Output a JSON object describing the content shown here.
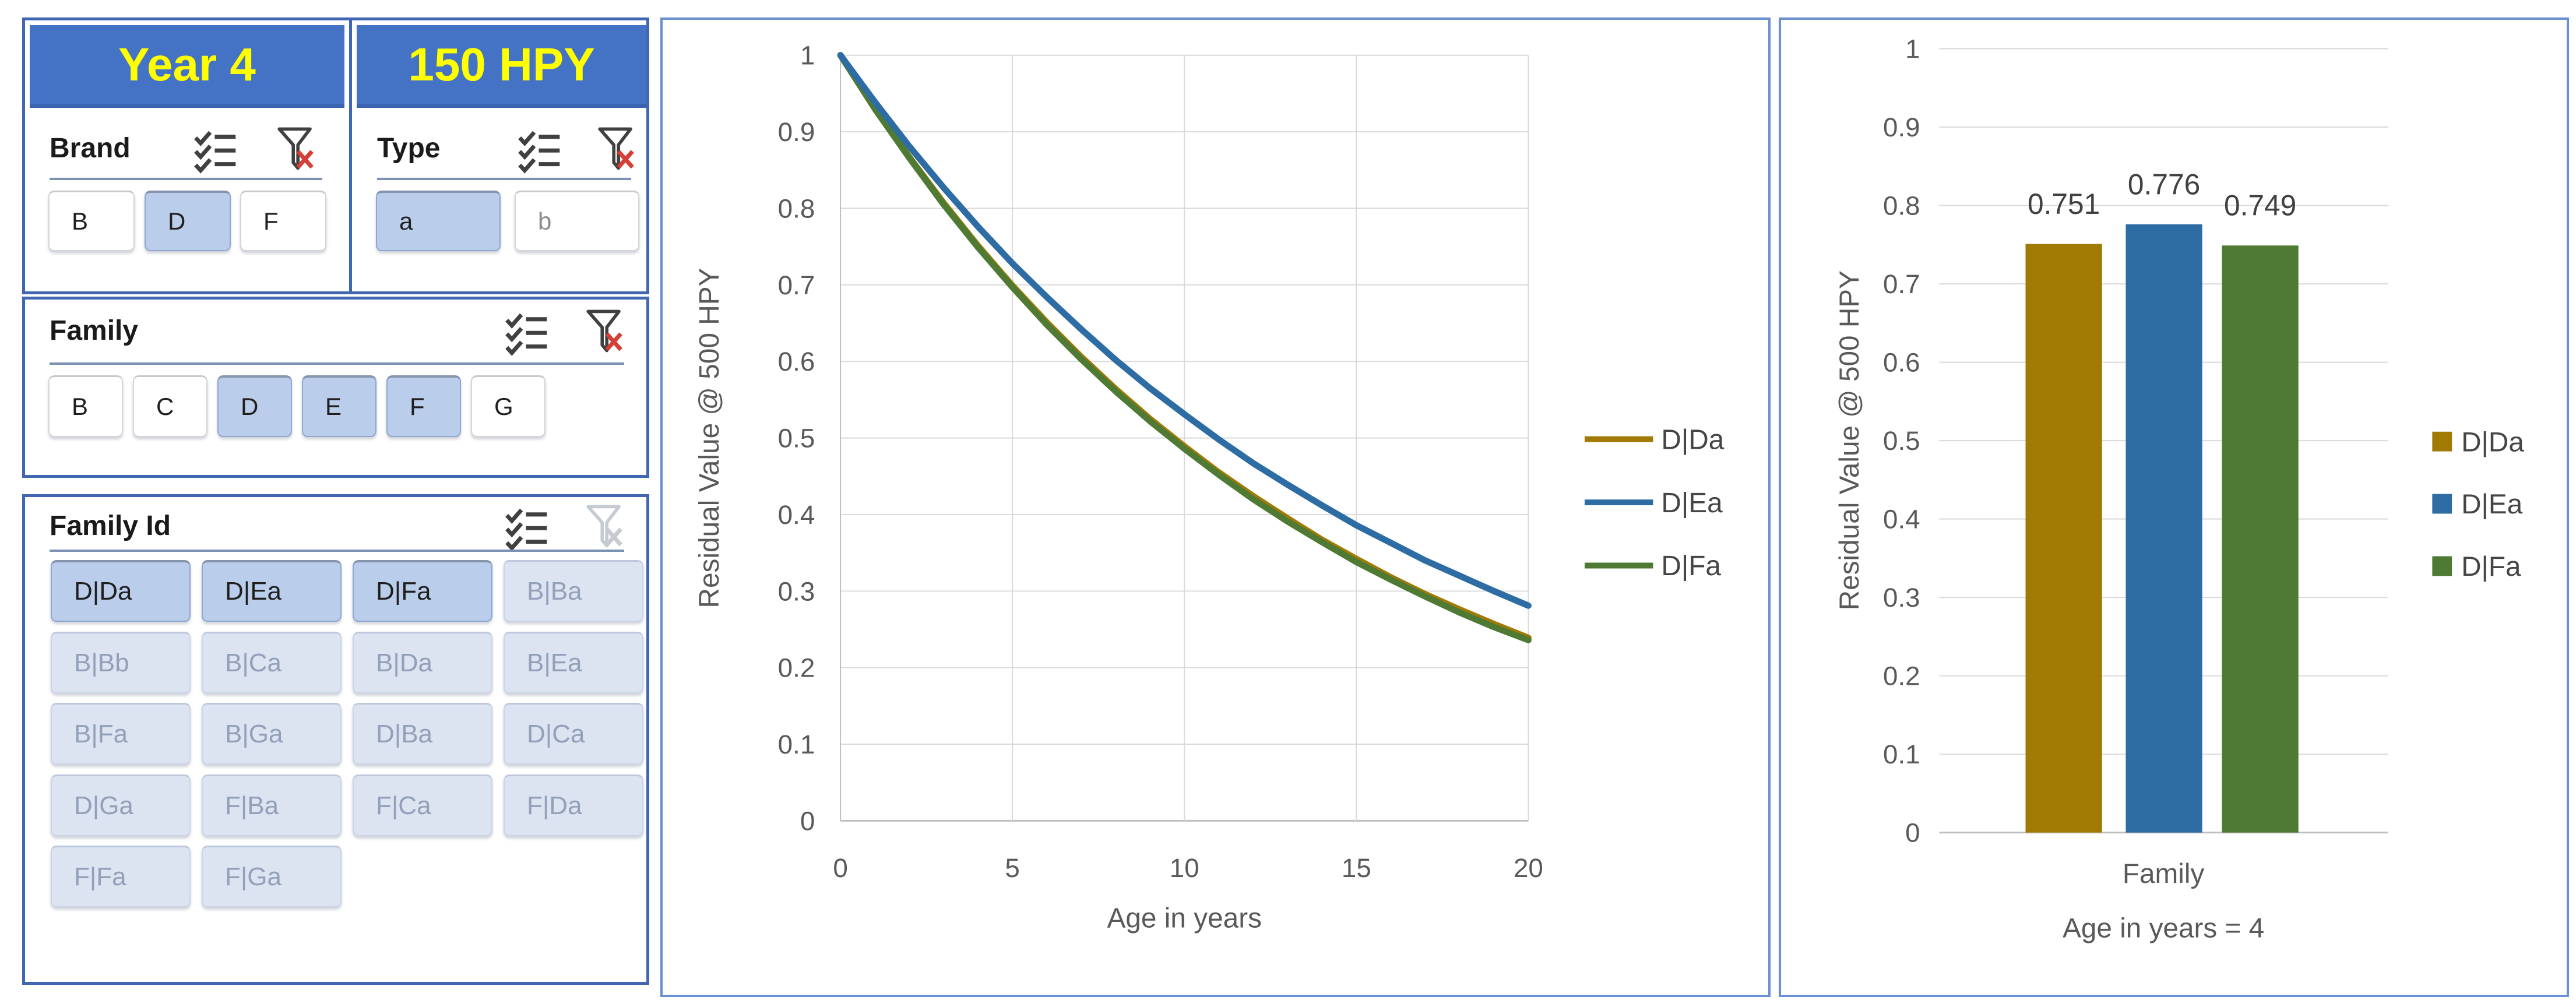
{
  "theme": {
    "accent_blue": "#4472C4",
    "tile_text_yellow": "#FFFF00",
    "box_border_blue": "#4167B2",
    "panel_border_blue": "#6B8FD3",
    "separator_blue": "#7C92B4",
    "selected_fill": "#BACDEA",
    "nodata_fill": "#DCE3F1",
    "grid_color": "#D9D9D9",
    "axis_color": "#BFBFBF",
    "tick_text": "#595959",
    "data_label_text": "#404040",
    "clear_filter_x_red": "#D43F38",
    "series_gold": "#A17A04",
    "series_blue": "#2E6DA4",
    "series_green": "#4E7A34"
  },
  "header_tiles": [
    {
      "label": "Year 4"
    },
    {
      "label": "150 HPY"
    }
  ],
  "slicers": {
    "brand": {
      "title": "Brand",
      "filter_clear_enabled": true,
      "items": [
        {
          "label": "B",
          "state": "normal"
        },
        {
          "label": "D",
          "state": "selected"
        },
        {
          "label": "F",
          "state": "normal"
        }
      ]
    },
    "type": {
      "title": "Type",
      "filter_clear_enabled": true,
      "items": [
        {
          "label": "a",
          "state": "selected"
        },
        {
          "label": "b",
          "state": "muted"
        }
      ]
    },
    "family": {
      "title": "Family",
      "filter_clear_enabled": true,
      "items": [
        {
          "label": "B",
          "state": "normal"
        },
        {
          "label": "C",
          "state": "normal"
        },
        {
          "label": "D",
          "state": "selected"
        },
        {
          "label": "E",
          "state": "selected"
        },
        {
          "label": "F",
          "state": "selected"
        },
        {
          "label": "G",
          "state": "normal"
        }
      ]
    },
    "family_id": {
      "title": "Family Id",
      "filter_clear_enabled": false,
      "items": [
        {
          "label": "D|Da",
          "state": "selected"
        },
        {
          "label": "D|Ea",
          "state": "selected"
        },
        {
          "label": "D|Fa",
          "state": "selected"
        },
        {
          "label": "B|Ba",
          "state": "nodata"
        },
        {
          "label": "B|Bb",
          "state": "nodata"
        },
        {
          "label": "B|Ca",
          "state": "nodata"
        },
        {
          "label": "B|Da",
          "state": "nodata"
        },
        {
          "label": "B|Ea",
          "state": "nodata"
        },
        {
          "label": "B|Fa",
          "state": "nodata"
        },
        {
          "label": "B|Ga",
          "state": "nodata"
        },
        {
          "label": "D|Ba",
          "state": "nodata"
        },
        {
          "label": "D|Ca",
          "state": "nodata"
        },
        {
          "label": "D|Ga",
          "state": "nodata"
        },
        {
          "label": "F|Ba",
          "state": "nodata"
        },
        {
          "label": "F|Ca",
          "state": "nodata"
        },
        {
          "label": "F|Da",
          "state": "nodata"
        },
        {
          "label": "F|Fa",
          "state": "nodata"
        },
        {
          "label": "F|Ga",
          "state": "nodata"
        }
      ]
    }
  },
  "chart_data": [
    {
      "type": "line",
      "title": "",
      "xlabel": "Age in years",
      "ylabel": "Residual Value @ 500 HPY",
      "xlim": [
        0,
        20
      ],
      "ylim": [
        0,
        1
      ],
      "xtick_labels": [
        "0",
        "5",
        "10",
        "15",
        "20"
      ],
      "ytick_labels": [
        "1",
        "0.9",
        "0.8",
        "0.7",
        "0.6",
        "0.5",
        "0.4",
        "0.3",
        "0.2",
        "0.1",
        "0"
      ],
      "grid": true,
      "legend_position": "right",
      "x": [
        0,
        1,
        2,
        3,
        4,
        5,
        6,
        7,
        8,
        9,
        10,
        11,
        12,
        13,
        14,
        15,
        16,
        17,
        18,
        19,
        20
      ],
      "series": [
        {
          "name": "D|Da",
          "color": "#A17A04",
          "values": [
            1,
            0.931,
            0.867,
            0.807,
            0.751,
            0.699,
            0.651,
            0.606,
            0.564,
            0.525,
            0.489,
            0.455,
            0.424,
            0.395,
            0.367,
            0.342,
            0.318,
            0.296,
            0.276,
            0.257,
            0.239
          ]
        },
        {
          "name": "D|Ea",
          "color": "#2E6DA4",
          "values": [
            1,
            0.939,
            0.881,
            0.827,
            0.776,
            0.728,
            0.684,
            0.642,
            0.602,
            0.565,
            0.531,
            0.498,
            0.467,
            0.439,
            0.412,
            0.386,
            0.363,
            0.34,
            0.32,
            0.3,
            0.281
          ]
        },
        {
          "name": "D|Fa",
          "color": "#4E7A34",
          "values": [
            1,
            0.93,
            0.866,
            0.805,
            0.749,
            0.697,
            0.648,
            0.603,
            0.561,
            0.522,
            0.486,
            0.452,
            0.42,
            0.391,
            0.364,
            0.338,
            0.315,
            0.293,
            0.272,
            0.253,
            0.236
          ]
        }
      ]
    },
    {
      "type": "bar",
      "title": "",
      "xlabel": "Family",
      "xlabel2": "Age in years = 4",
      "ylabel": "Residual Value @ 500 HPY",
      "ylim": [
        0,
        1
      ],
      "ytick_labels": [
        "1",
        "0.9",
        "0.8",
        "0.7",
        "0.6",
        "0.5",
        "0.4",
        "0.3",
        "0.2",
        "0.1",
        "0"
      ],
      "grid": true,
      "legend_position": "right",
      "categories": [
        "Family"
      ],
      "series": [
        {
          "name": "D|Da",
          "color": "#A17A04",
          "value": 0.751,
          "data_label": "0.751"
        },
        {
          "name": "D|Ea",
          "color": "#2E6DA4",
          "value": 0.776,
          "data_label": "0.776"
        },
        {
          "name": "D|Fa",
          "color": "#4E7A34",
          "value": 0.749,
          "data_label": "0.749"
        }
      ]
    }
  ]
}
